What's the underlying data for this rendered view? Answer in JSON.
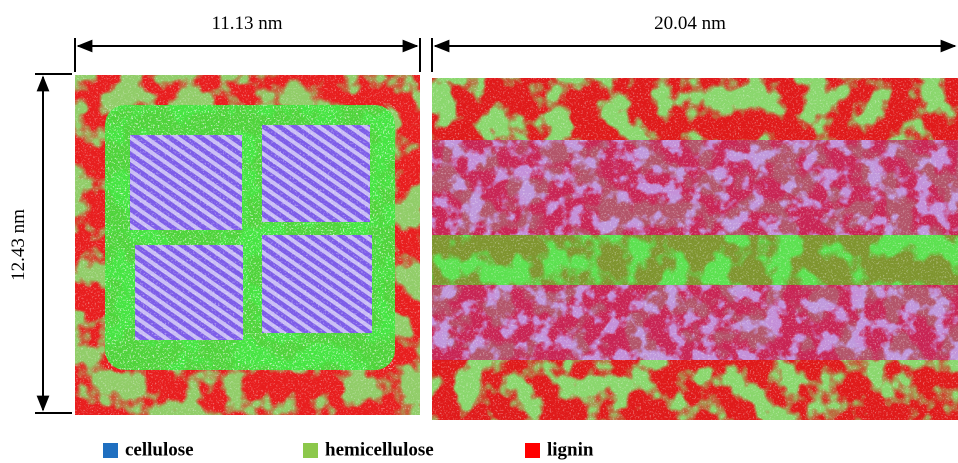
{
  "dimensions": {
    "left_width": "11.13 nm",
    "right_width": "20.04 nm",
    "height": "12.43 nm"
  },
  "legend": {
    "items": [
      {
        "label": "cellulose",
        "color": "#1f6fc0"
      },
      {
        "label": "hemicellulose",
        "color": "#8cc84b"
      },
      {
        "label": "lignin",
        "color": "#ff0000"
      }
    ]
  }
}
